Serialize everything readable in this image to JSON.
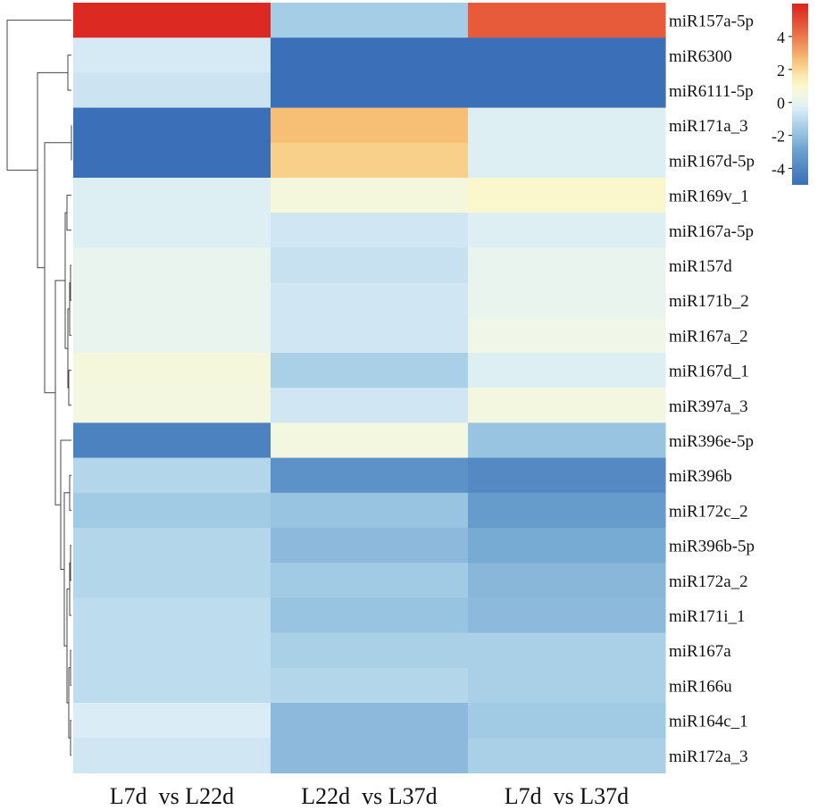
{
  "chart_data": {
    "type": "heatmap",
    "columns": [
      "L7d  vs L22d",
      "L22d  vs L37d",
      "L7d  vs L37d"
    ],
    "rows": [
      "miR157a-5p",
      "miR6300",
      "miR6111-5p",
      "miR171a_3",
      "miR167d-5p",
      "miR169v_1",
      "miR167a-5p",
      "miR157d",
      "miR171b_2",
      "miR167a_2",
      "miR167d_1",
      "miR397a_3",
      "miR396e-5p",
      "miR396b",
      "miR172c_2",
      "miR396b-5p",
      "miR172a_2",
      "miR171i_1",
      "miR167a",
      "miR166u",
      "miR164c_1",
      "miR172a_3"
    ],
    "values": [
      [
        5.8,
        -1.5,
        4.6
      ],
      [
        -0.5,
        -5.0,
        -5.0
      ],
      [
        -0.7,
        -5.0,
        -5.0
      ],
      [
        -5.0,
        2.6,
        -0.3
      ],
      [
        -5.0,
        2.2,
        -0.3
      ],
      [
        -0.3,
        0.6,
        1.0
      ],
      [
        -0.3,
        -0.6,
        -0.3
      ],
      [
        0.0,
        -0.8,
        0.0
      ],
      [
        0.0,
        -0.6,
        0.0
      ],
      [
        0.0,
        -0.6,
        0.3
      ],
      [
        0.6,
        -1.4,
        -0.3
      ],
      [
        0.5,
        -0.6,
        0.5
      ],
      [
        -4.2,
        0.5,
        -1.8
      ],
      [
        -1.2,
        -3.5,
        -3.9
      ],
      [
        -1.6,
        -1.8,
        -3.1
      ],
      [
        -1.2,
        -2.1,
        -2.6
      ],
      [
        -1.2,
        -1.6,
        -2.2
      ],
      [
        -1.0,
        -1.8,
        -2.1
      ],
      [
        -1.0,
        -1.4,
        -1.4
      ],
      [
        -1.0,
        -1.2,
        -1.4
      ],
      [
        -0.4,
        -2.1,
        -1.6
      ],
      [
        -0.6,
        -2.1,
        -1.4
      ]
    ],
    "colorbar": {
      "min": -5,
      "max": 6,
      "ticks": [
        4,
        2,
        0,
        -2,
        -4
      ]
    },
    "colors": {
      "low": "#3b6fb8",
      "mid": "#f8fbe6",
      "high": "#df2b22"
    },
    "dendrogram_color": "#444444"
  }
}
